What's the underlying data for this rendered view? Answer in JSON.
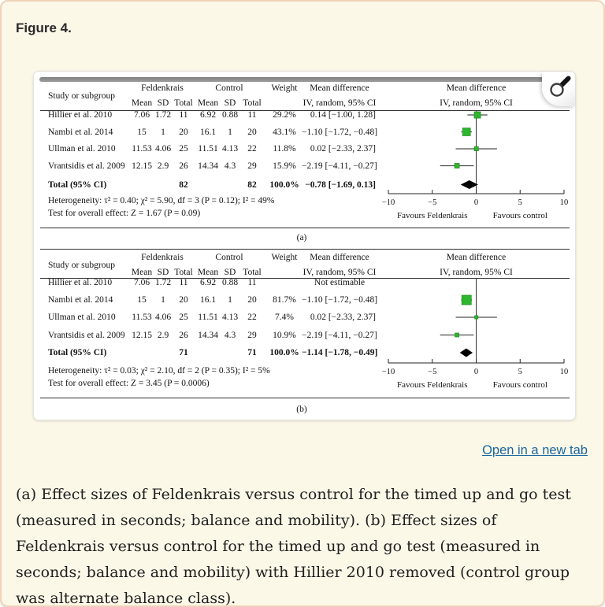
{
  "page": {
    "figure_label": "Figure 4.",
    "open_link_label": "Open in a new tab",
    "caption": "(a) Effect sizes of Feldenkrais versus control for the timed up and go test (measured in seconds; balance and mobility). (b) Effect sizes of Feldenkrais versus control for the timed up and go test (measured in seconds; balance and mobility) with Hillier 2010 removed (control group was alternate balance class).",
    "colors": {
      "page_bg": "#fcf8e8",
      "page_border": "#f0d2ba",
      "link_blue": "#1a66a0",
      "marker_green": "#2eb72e",
      "marker_green_edge": "#1d8c1d",
      "ci_line": "#4d4d4d",
      "diamond": "#000000",
      "rule": "#2e2e2e"
    }
  },
  "chart_data": [
    {
      "type": "forest",
      "panel_label": "(a)",
      "header": {
        "study": "Study or subgroup",
        "group1": "Feldenkrais",
        "group2": "Control",
        "subcols": [
          "Mean",
          "SD",
          "Total"
        ],
        "weight": "Weight",
        "md": "Mean difference",
        "md_sub": "IV, random, 95% CI",
        "plot": "Mean difference",
        "plot_sub": "IV, random, 95% CI"
      },
      "studies": [
        {
          "name": "Hillier et al. 2010",
          "f_mean": "7.06",
          "f_sd": "1.72",
          "f_total": "11",
          "c_mean": "6.92",
          "c_sd": "0.88",
          "c_total": "11",
          "weight": "29.2%",
          "md_text": "0.14 [−1.00, 1.28]",
          "est": 0.14,
          "ci_low": -1.0,
          "ci_high": 1.28,
          "weight_pct": 29.2
        },
        {
          "name": "Nambi et al. 2014",
          "f_mean": "15",
          "f_sd": "1",
          "f_total": "20",
          "c_mean": "16.1",
          "c_sd": "1",
          "c_total": "20",
          "weight": "43.1%",
          "md_text": "−1.10 [−1.72, −0.48]",
          "est": -1.1,
          "ci_low": -1.72,
          "ci_high": -0.48,
          "weight_pct": 43.1
        },
        {
          "name": "Ullman et al. 2010",
          "f_mean": "11.53",
          "f_sd": "4.06",
          "f_total": "25",
          "c_mean": "11.51",
          "c_sd": "4.13",
          "c_total": "22",
          "weight": "11.8%",
          "md_text": "0.02 [−2.33, 2.37]",
          "est": 0.02,
          "ci_low": -2.33,
          "ci_high": 2.37,
          "weight_pct": 11.8
        },
        {
          "name": "Vrantsidis et al. 2009",
          "f_mean": "12.15",
          "f_sd": "2.9",
          "f_total": "26",
          "c_mean": "14.34",
          "c_sd": "4.3",
          "c_total": "29",
          "weight": "15.9%",
          "md_text": "−2.19 [−4.11, −0.27]",
          "est": -2.19,
          "ci_low": -4.11,
          "ci_high": -0.27,
          "weight_pct": 15.9
        }
      ],
      "total": {
        "label": "Total (95% CI)",
        "f_total": "82",
        "c_total": "82",
        "weight": "100.0%",
        "md_text": "−0.78 [−1.69, 0.13]",
        "est": -0.78,
        "ci_low": -1.69,
        "ci_high": 0.13
      },
      "heterogeneity": "Heterogeneity: τ² = 0.40; χ² = 5.90, df = 3 (P = 0.12); I² = 49%",
      "overall_test": "Test for overall effect: Z = 1.67 (P = 0.09)",
      "axis": {
        "min": -10,
        "max": 10,
        "ticks": [
          {
            "v": -10,
            "label": "−10"
          },
          {
            "v": -5,
            "label": "−5"
          },
          {
            "v": 0,
            "label": "0"
          },
          {
            "v": 5,
            "label": "5"
          },
          {
            "v": 10,
            "label": "10"
          }
        ],
        "left_label": "Favours Feldenkrais",
        "right_label": "Favours control"
      }
    },
    {
      "type": "forest",
      "panel_label": "(b)",
      "header": {
        "study": "Study or subgroup",
        "group1": "Feldenkrais",
        "group2": "Control",
        "subcols": [
          "Mean",
          "SD",
          "Total"
        ],
        "weight": "Weight",
        "md": "Mean difference",
        "md_sub": "IV, random, 95% CI",
        "plot": "Mean difference",
        "plot_sub": "IV, random, 95% CI"
      },
      "studies": [
        {
          "name": "Hillier et al. 2010",
          "f_mean": "7.06",
          "f_sd": "1.72",
          "f_total": "11",
          "c_mean": "6.92",
          "c_sd": "0.88",
          "c_total": "11",
          "weight": "",
          "md_text": "Not estimable",
          "est": null,
          "ci_low": null,
          "ci_high": null,
          "weight_pct": 0
        },
        {
          "name": "Nambi et al. 2014",
          "f_mean": "15",
          "f_sd": "1",
          "f_total": "20",
          "c_mean": "16.1",
          "c_sd": "1",
          "c_total": "20",
          "weight": "81.7%",
          "md_text": "−1.10 [−1.72, −0.48]",
          "est": -1.1,
          "ci_low": -1.72,
          "ci_high": -0.48,
          "weight_pct": 81.7
        },
        {
          "name": "Ullman et al. 2010",
          "f_mean": "11.53",
          "f_sd": "4.06",
          "f_total": "25",
          "c_mean": "11.51",
          "c_sd": "4.13",
          "c_total": "22",
          "weight": "7.4%",
          "md_text": "0.02 [−2.33, 2.37]",
          "est": 0.02,
          "ci_low": -2.33,
          "ci_high": 2.37,
          "weight_pct": 7.4
        },
        {
          "name": "Vrantsidis et al. 2009",
          "f_mean": "12.15",
          "f_sd": "2.9",
          "f_total": "26",
          "c_mean": "14.34",
          "c_sd": "4.3",
          "c_total": "29",
          "weight": "10.9%",
          "md_text": "−2.19 [−4.11, −0.27]",
          "est": -2.19,
          "ci_low": -4.11,
          "ci_high": -0.27,
          "weight_pct": 10.9
        }
      ],
      "total": {
        "label": "Total (95% CI)",
        "f_total": "71",
        "c_total": "71",
        "weight": "100.0%",
        "md_text": "−1.14 [−1.78, −0.49]",
        "est": -1.14,
        "ci_low": -1.78,
        "ci_high": -0.49
      },
      "heterogeneity": "Heterogeneity: τ² = 0.03; χ² = 2.10, df = 2 (P = 0.35); I² = 5%",
      "overall_test": "Test for overall effect: Z = 3.45 (P = 0.0006)",
      "axis": {
        "min": -10,
        "max": 10,
        "ticks": [
          {
            "v": -10,
            "label": "−10"
          },
          {
            "v": -5,
            "label": "−5"
          },
          {
            "v": 0,
            "label": "0"
          },
          {
            "v": 5,
            "label": "5"
          },
          {
            "v": 10,
            "label": "10"
          }
        ],
        "left_label": "Favours Feldenkrais",
        "right_label": "Favours control"
      }
    }
  ]
}
